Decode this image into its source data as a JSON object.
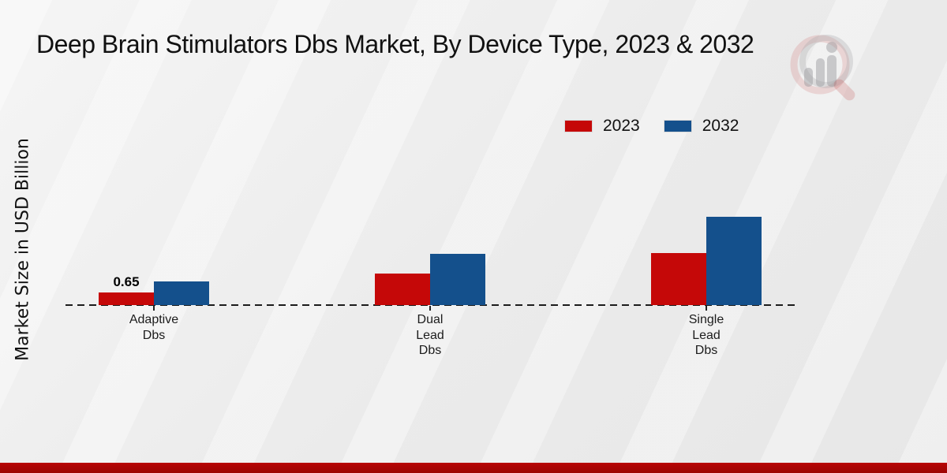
{
  "title": "Deep Brain Stimulators Dbs Market, By Device Type, 2023 & 2032",
  "y_axis_label": "Market Size in USD Billion",
  "legend": {
    "items": [
      {
        "label": "2023",
        "color": "#c50808"
      },
      {
        "label": "2032",
        "color": "#14508c"
      }
    ]
  },
  "footer": {
    "accent_color": "#b80505"
  },
  "watermark": {
    "icon": "magnifier-bar-chart-logo"
  },
  "chart_data": {
    "type": "bar",
    "categories": [
      [
        "Adaptive",
        "Dbs"
      ],
      [
        "Dual",
        "Lead",
        "Dbs"
      ],
      [
        "Single",
        "Lead",
        "Dbs"
      ]
    ],
    "series": [
      {
        "name": "2023",
        "color": "#c50808",
        "values": [
          0.65,
          1.63,
          2.7
        ]
      },
      {
        "name": "2032",
        "color": "#14508c",
        "values": [
          1.2,
          2.66,
          4.57
        ]
      }
    ],
    "value_labels": [
      {
        "series_index": 0,
        "category_index": 0,
        "text": "0.65"
      }
    ],
    "title": "Deep Brain Stimulators Dbs Market, By Device Type, 2023 & 2032",
    "xlabel": "",
    "ylabel": "Market Size in USD Billion",
    "ylim": [
      0,
      5
    ],
    "grid": false,
    "baseline_style": "dashed",
    "legend_position": "top-right"
  }
}
